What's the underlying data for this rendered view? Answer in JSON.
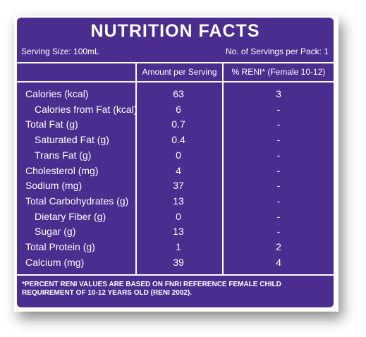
{
  "title": "NUTRITION FACTS",
  "serving_size": "Serving Size: 100mL",
  "servings_per_pack": "No. of Servings per Pack: 1",
  "headers": {
    "amount": "Amount per Serving",
    "reni": "% RENI* (Female 10-12)"
  },
  "rows": [
    {
      "name": "Calories (kcal)",
      "amount": "63",
      "reni": "3",
      "indent": false
    },
    {
      "name": "Calories from Fat (kcal)",
      "amount": "6",
      "reni": "-",
      "indent": true
    },
    {
      "name": "Total Fat (g)",
      "amount": "0.7",
      "reni": "-",
      "indent": false
    },
    {
      "name": "Saturated Fat (g)",
      "amount": "0.4",
      "reni": "-",
      "indent": true
    },
    {
      "name": "Trans Fat (g)",
      "amount": "0",
      "reni": "-",
      "indent": true
    },
    {
      "name": "Cholesterol (mg)",
      "amount": "4",
      "reni": "-",
      "indent": false
    },
    {
      "name": "Sodium (mg)",
      "amount": "37",
      "reni": "-",
      "indent": false
    },
    {
      "name": "Total Carbohydrates (g)",
      "amount": "13",
      "reni": "-",
      "indent": false
    },
    {
      "name": "Dietary Fiber (g)",
      "amount": "0",
      "reni": "-",
      "indent": true
    },
    {
      "name": "Sugar (g)",
      "amount": "13",
      "reni": "-",
      "indent": true
    },
    {
      "name": "Total Protein (g)",
      "amount": "1",
      "reni": "2",
      "indent": false
    },
    {
      "name": "Calcium (mg)",
      "amount": "39",
      "reni": "4",
      "indent": false
    }
  ],
  "footnote": "*PERCENT RENI VALUES ARE BASED ON FNRI REFERENCE FEMALE CHILD REQUIREMENT OF 10-12 YEARS OLD (RENI 2002).",
  "colors": {
    "background": "#4b2c8f",
    "text": "#ffffff"
  }
}
